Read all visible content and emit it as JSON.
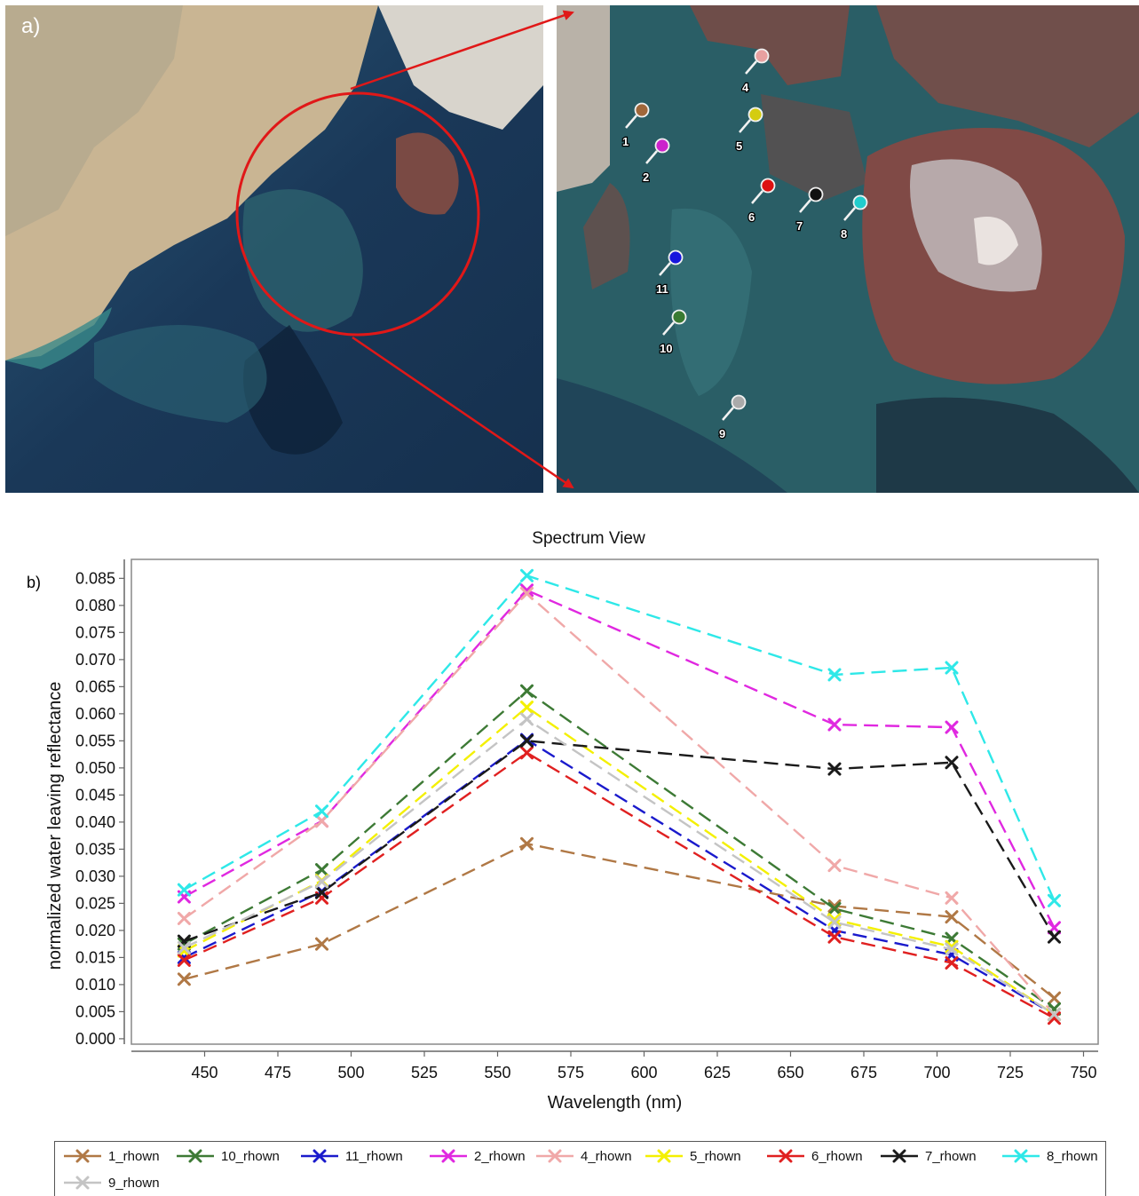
{
  "panel_a": {
    "letter": "a)",
    "markers": [
      {
        "label": "1",
        "color": "#a0673a"
      },
      {
        "label": "2",
        "color": "#cc22cc"
      },
      {
        "label": "4",
        "color": "#e8a0a0"
      },
      {
        "label": "5",
        "color": "#d4cc10"
      },
      {
        "label": "6",
        "color": "#dd1111"
      },
      {
        "label": "7",
        "color": "#111111"
      },
      {
        "label": "8",
        "color": "#22cccc"
      },
      {
        "label": "9",
        "color": "#aaaaaa"
      },
      {
        "label": "10",
        "color": "#3a7a32"
      },
      {
        "label": "11",
        "color": "#1616dd"
      }
    ]
  },
  "panel_b": {
    "letter": "b)"
  },
  "chart_data": {
    "type": "line",
    "title": "Spectrum View",
    "xlabel": "Wavelength (nm)",
    "ylabel": "normalized water leaving reflectance",
    "xlim": [
      425,
      755
    ],
    "ylim": [
      -0.001,
      0.0885
    ],
    "xticks": [
      "450",
      "475",
      "500",
      "525",
      "550",
      "575",
      "600",
      "625",
      "650",
      "675",
      "700",
      "725",
      "750"
    ],
    "yticks": [
      "0.000",
      "0.005",
      "0.010",
      "0.015",
      "0.020",
      "0.025",
      "0.030",
      "0.035",
      "0.040",
      "0.045",
      "0.050",
      "0.055",
      "0.060",
      "0.065",
      "0.070",
      "0.075",
      "0.080",
      "0.085"
    ],
    "x": [
      443,
      490,
      560,
      665,
      705,
      740
    ],
    "legend_position": "bottom",
    "series": [
      {
        "name": "1_rhown",
        "color": "#b07845",
        "values": [
          0.011,
          0.0175,
          0.036,
          0.0245,
          0.0225,
          0.0075
        ]
      },
      {
        "name": "10_rhown",
        "color": "#3d7a35",
        "values": [
          0.0175,
          0.0312,
          0.0642,
          0.024,
          0.0185,
          0.0055
        ]
      },
      {
        "name": "11_rhown",
        "color": "#1a1acc",
        "values": [
          0.015,
          0.0272,
          0.0552,
          0.02,
          0.0155,
          0.0045
        ]
      },
      {
        "name": "2_rhown",
        "color": "#e028e0",
        "values": [
          0.0262,
          0.0402,
          0.0828,
          0.058,
          0.0575,
          0.0205
        ]
      },
      {
        "name": "4_rhown",
        "color": "#f0a8a8",
        "values": [
          0.0222,
          0.0402,
          0.0822,
          0.032,
          0.026,
          0.0045
        ]
      },
      {
        "name": "5_rhown",
        "color": "#f4f000",
        "values": [
          0.0162,
          0.0292,
          0.0612,
          0.022,
          0.017,
          0.0045
        ]
      },
      {
        "name": "6_rhown",
        "color": "#e02020",
        "values": [
          0.0145,
          0.026,
          0.0528,
          0.0188,
          0.014,
          0.0038
        ]
      },
      {
        "name": "7_rhown",
        "color": "#1a1a1a",
        "values": [
          0.018,
          0.027,
          0.055,
          0.0498,
          0.051,
          0.0188
        ]
      },
      {
        "name": "8_rhown",
        "color": "#2ee8e8",
        "values": [
          0.0275,
          0.042,
          0.0855,
          0.0672,
          0.0685,
          0.0255
        ]
      },
      {
        "name": "9_rhown",
        "color": "#c4c4c4",
        "values": [
          0.0168,
          0.029,
          0.059,
          0.0215,
          0.0165,
          0.0045
        ]
      }
    ]
  }
}
